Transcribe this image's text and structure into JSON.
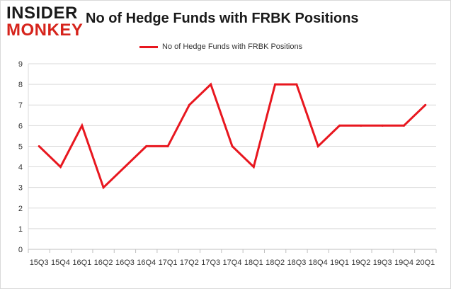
{
  "header": {
    "logo_top": "INSIDER",
    "logo_bottom": "MONKEY",
    "title": "No of Hedge Funds with FRBK Positions"
  },
  "legend": {
    "label": "No of Hedge Funds with FRBK Positions"
  },
  "colors": {
    "series": "#e8171f",
    "grid": "#d9d9d9",
    "text": "#333333",
    "brand_red": "#d6241c"
  },
  "chart_data": {
    "type": "line",
    "title": "No of Hedge Funds with FRBK Positions",
    "xlabel": "",
    "ylabel": "",
    "categories": [
      "15Q3",
      "15Q4",
      "16Q1",
      "16Q2",
      "16Q3",
      "16Q4",
      "17Q1",
      "17Q2",
      "17Q3",
      "17Q4",
      "18Q1",
      "18Q2",
      "18Q3",
      "18Q4",
      "19Q1",
      "19Q2",
      "19Q3",
      "19Q4",
      "20Q1"
    ],
    "series": [
      {
        "name": "No of Hedge Funds with FRBK Positions",
        "values": [
          5,
          4,
          6,
          3,
          4,
          5,
          5,
          7,
          8,
          5,
          4,
          8,
          8,
          5,
          6,
          6,
          6,
          6,
          7
        ]
      }
    ],
    "ylim": [
      0,
      9
    ],
    "yticks": [
      0,
      1,
      2,
      3,
      4,
      5,
      6,
      7,
      8,
      9
    ],
    "grid": true,
    "legend_position": "top-center"
  }
}
